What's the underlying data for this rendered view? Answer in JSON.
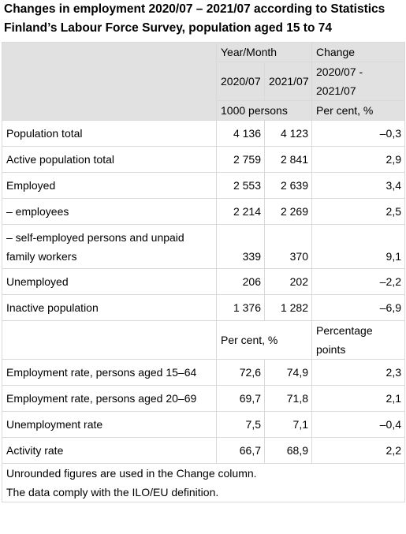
{
  "title": "Changes in employment 2020/07 – 2021/07 according to Statistics Finland’s Labour Force Survey, population aged 15 to 74",
  "header": {
    "year_month": "Year/Month",
    "change": "Change",
    "col1": "2020/07",
    "col2": "2021/07",
    "col3": "2020/07 -\n2021/07",
    "unit1": "1000 persons",
    "unit2": "Per cent, %"
  },
  "rows_persons": [
    {
      "label": "Population total",
      "v1": "4 136",
      "v2": "4 123",
      "chg": "–0,3"
    },
    {
      "label": "Active population total",
      "v1": "2 759",
      "v2": "2 841",
      "chg": "2,9"
    },
    {
      "label": "Employed",
      "v1": "2 553",
      "v2": "2 639",
      "chg": "3,4"
    },
    {
      "label": "– employees",
      "v1": "2 214",
      "v2": "2 269",
      "chg": "2,5"
    },
    {
      "label": "– self-employed persons and unpaid family workers",
      "v1": "339",
      "v2": "370",
      "chg": "9,1"
    },
    {
      "label": "Unemployed",
      "v1": "206",
      "v2": "202",
      "chg": "–2,2"
    },
    {
      "label": "Inactive population",
      "v1": "1 376",
      "v2": "1 282",
      "chg": "–6,9"
    }
  ],
  "subheader": {
    "unit1": "Per cent, %",
    "unit2": "Percentage points"
  },
  "rows_rates": [
    {
      "label": "Employment rate, persons aged 15–64",
      "v1": "72,6",
      "v2": "74,9",
      "chg": "2,3"
    },
    {
      "label": "Employment rate, persons aged 20–69",
      "v1": "69,7",
      "v2": "71,8",
      "chg": "2,1"
    },
    {
      "label": "Unemployment rate",
      "v1": "7,5",
      "v2": "7,1",
      "chg": "–0,4"
    },
    {
      "label": "Activity rate",
      "v1": "66,7",
      "v2": "68,9",
      "chg": "2,2"
    }
  ],
  "footnotes": [
    "Unrounded figures are used in the Change column.",
    "The data comply with the ILO/EU definition."
  ]
}
